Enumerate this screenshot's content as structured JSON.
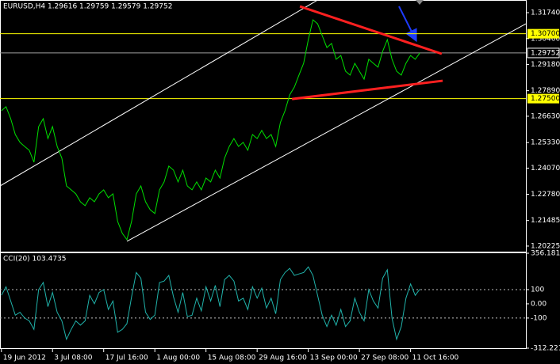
{
  "chart_data": [
    {
      "type": "line",
      "title": "EURUSD,H4 1.29616 1.29759 1.29579 1.29752",
      "color": "#00e000",
      "values": [
        1.269,
        1.271,
        1.2651,
        1.2573,
        1.2534,
        1.2514,
        1.2495,
        1.2436,
        1.2612,
        1.2651,
        1.2553,
        1.2612,
        1.2514,
        1.2456,
        1.2319,
        1.23,
        1.228,
        1.2241,
        1.2222,
        1.2261,
        1.2241,
        1.228,
        1.23,
        1.2261,
        1.228,
        1.2144,
        1.2085,
        1.2054,
        1.2144,
        1.228,
        1.2319,
        1.2241,
        1.2202,
        1.2183,
        1.23,
        1.2339,
        1.2417,
        1.2397,
        1.2339,
        1.2397,
        1.2319,
        1.23,
        1.2339,
        1.23,
        1.2358,
        1.2339,
        1.2397,
        1.2358,
        1.2456,
        1.2514,
        1.2553,
        1.2514,
        1.2534,
        1.2495,
        1.2573,
        1.2553,
        1.2593,
        1.2553,
        1.2573,
        1.2514,
        1.2632,
        1.269,
        1.2768,
        1.2807,
        1.2866,
        1.2924,
        1.3041,
        1.3139,
        1.3119,
        1.3061,
        1.3002,
        1.3022,
        1.2944,
        1.2963,
        1.2885,
        1.2866,
        1.2924,
        1.2885,
        1.2846,
        1.2944,
        1.2924,
        1.2905,
        1.2983,
        1.3041,
        1.2944,
        1.2885,
        1.2866,
        1.2924,
        1.2963,
        1.2944,
        1.29752
      ],
      "xlim": [
        -0.3,
        112.8
      ],
      "ylim": [
        1.1995,
        1.32365
      ],
      "yticks": [
        {
          "value": 1.3174,
          "label": "1.31740"
        },
        {
          "value": 1.3046,
          "label": "1.30460"
        },
        {
          "value": 1.2918,
          "label": "1.29180"
        },
        {
          "value": 1.2789,
          "label": "1.27890"
        },
        {
          "value": 1.2663,
          "label": "1.26630"
        },
        {
          "value": 1.2533,
          "label": "1.25330"
        },
        {
          "value": 1.2407,
          "label": "1.24070"
        },
        {
          "value": 1.2278,
          "label": "1.22780"
        },
        {
          "value": 1.21485,
          "label": "1.21485"
        },
        {
          "value": 1.20225,
          "label": "1.20225"
        }
      ],
      "levels": [
        {
          "value": 1.307,
          "label": "1.30700",
          "color": "#ffff00"
        },
        {
          "value": 1.29752,
          "label": "1.29752",
          "color": "#a0a0a0"
        },
        {
          "value": 1.275,
          "label": "1.27500",
          "color": "#ffff00"
        }
      ],
      "trendlines": [
        {
          "x": [
            -0.3,
            68
          ],
          "y": [
            1.2319,
            1.3236
          ],
          "color": "#ffffff"
        },
        {
          "x": [
            27,
            112.8
          ],
          "y": [
            1.2046,
            1.3119
          ],
          "color": "#ffffff"
        },
        {
          "x": [
            64.2,
            94.7
          ],
          "y": [
            1.3205,
            1.2971
          ],
          "color": "#ff2020"
        },
        {
          "x": [
            62.5,
            94.9
          ],
          "y": [
            1.2748,
            1.2838
          ],
          "color": "#ff2020"
        }
      ]
    },
    {
      "type": "line",
      "title": "CCI(20) 103.4735",
      "color": "#20b2aa",
      "values": [
        60,
        120,
        20,
        -80,
        -60,
        -100,
        -120,
        -180,
        100,
        150,
        -20,
        80,
        -60,
        -120,
        -250,
        -180,
        -120,
        -150,
        -120,
        60,
        0,
        80,
        100,
        -40,
        20,
        -200,
        -180,
        -140,
        50,
        220,
        180,
        -60,
        -110,
        -80,
        150,
        160,
        200,
        50,
        -60,
        80,
        -90,
        -80,
        40,
        -50,
        120,
        20,
        130,
        -20,
        170,
        200,
        160,
        20,
        40,
        -40,
        120,
        40,
        110,
        -30,
        40,
        -70,
        170,
        220,
        250,
        200,
        210,
        220,
        260,
        200,
        60,
        -80,
        -160,
        -80,
        -150,
        -40,
        -160,
        -120,
        40,
        -60,
        -120,
        100,
        20,
        -30,
        180,
        240,
        -100,
        -250,
        -160,
        40,
        140,
        60,
        103.4735
      ],
      "xlim": [
        -0.3,
        112.8
      ],
      "ylim": [
        -312.221,
        356.181
      ],
      "yticks": [
        356.181,
        100,
        {
          "value": 0,
          "label": "0.00"
        },
        -100,
        -312.221
      ],
      "levels": [
        100,
        -100
      ],
      "xticks": [
        {
          "value": 0,
          "label": "19 Jun 2012"
        },
        {
          "value": 11,
          "label": "3 Jul 08:00"
        },
        {
          "value": 22,
          "label": "17 Jul 16:00"
        },
        {
          "value": 33,
          "label": "1 Aug 00:00"
        },
        {
          "value": 44,
          "label": "15 Aug 08:00"
        },
        {
          "value": 55,
          "label": "29 Aug 16:00"
        },
        {
          "value": 66,
          "label": "13 Sep 00:00"
        },
        {
          "value": 77,
          "label": "27 Sep 08:00"
        },
        {
          "value": 88,
          "label": "11 Oct 16:00"
        }
      ]
    }
  ]
}
